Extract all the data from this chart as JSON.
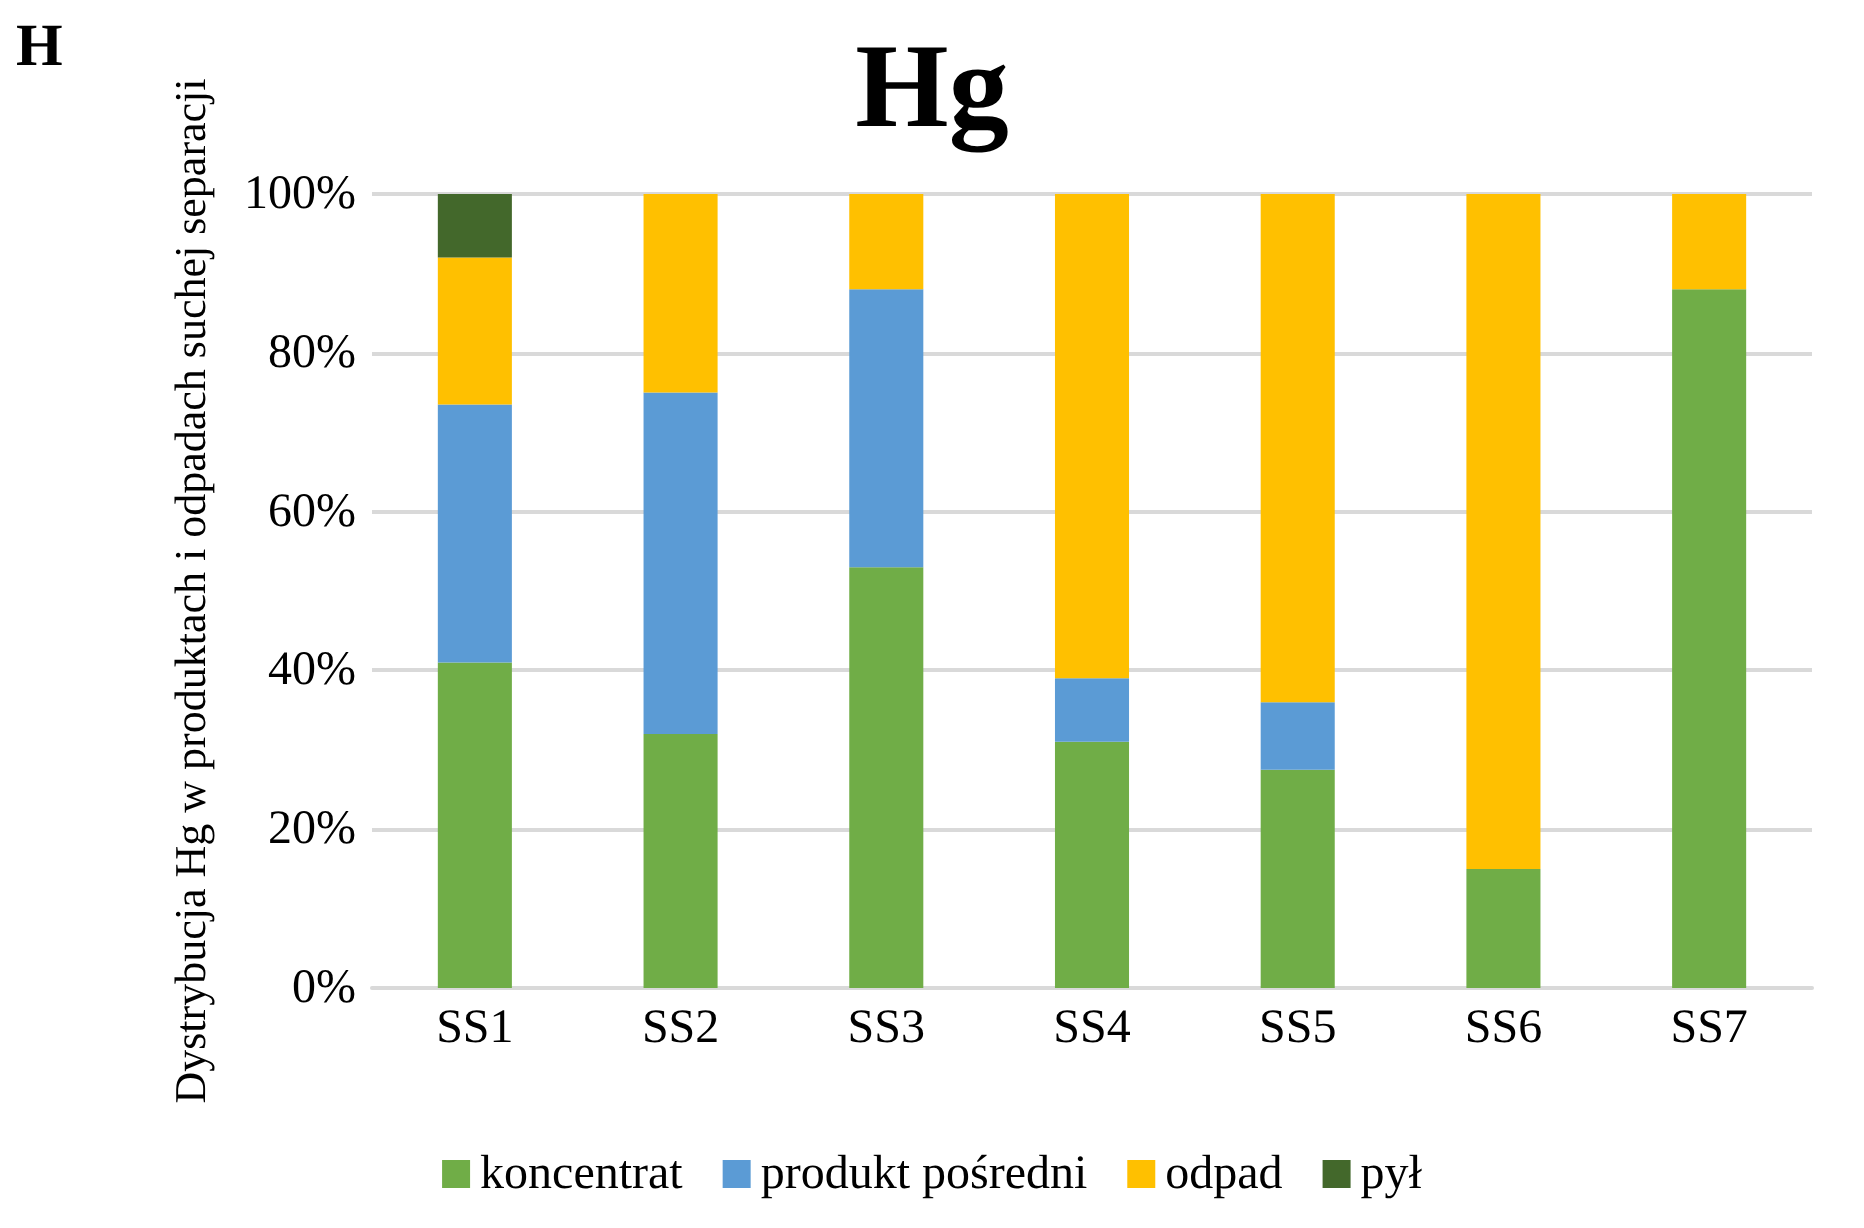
{
  "chart_data": {
    "type": "bar",
    "title": "Hg",
    "ylabel": "Dystrybucja Hg w produktach i odpadach suchej separacji",
    "annotations": [
      "H"
    ],
    "categories": [
      "SS1",
      "SS2",
      "SS3",
      "SS4",
      "SS5",
      "SS6",
      "SS7"
    ],
    "stacked": true,
    "series": [
      {
        "name": "koncentrat",
        "color": "#70ad47",
        "values": [
          41,
          32,
          53,
          31,
          27.5,
          15,
          88
        ]
      },
      {
        "name": "produkt pośredni",
        "color": "#5b9bd5",
        "values": [
          32.5,
          43,
          35,
          8,
          8.5,
          0,
          0
        ]
      },
      {
        "name": "odpad",
        "color": "#ffc000",
        "values": [
          18.5,
          25,
          12,
          61,
          64,
          85,
          12
        ]
      },
      {
        "name": "pył",
        "color": "#43682b",
        "values": [
          8,
          0,
          0,
          0,
          0,
          0,
          0
        ]
      }
    ],
    "ylim": [
      0,
      100
    ],
    "yticks": [
      {
        "value": 0,
        "label": "0%"
      },
      {
        "value": 20,
        "label": "20%"
      },
      {
        "value": 40,
        "label": "40%"
      },
      {
        "value": 60,
        "label": "60%"
      },
      {
        "value": 80,
        "label": "80%"
      },
      {
        "value": 100,
        "label": "100%"
      }
    ],
    "grid": "y",
    "legend": "bottom"
  }
}
